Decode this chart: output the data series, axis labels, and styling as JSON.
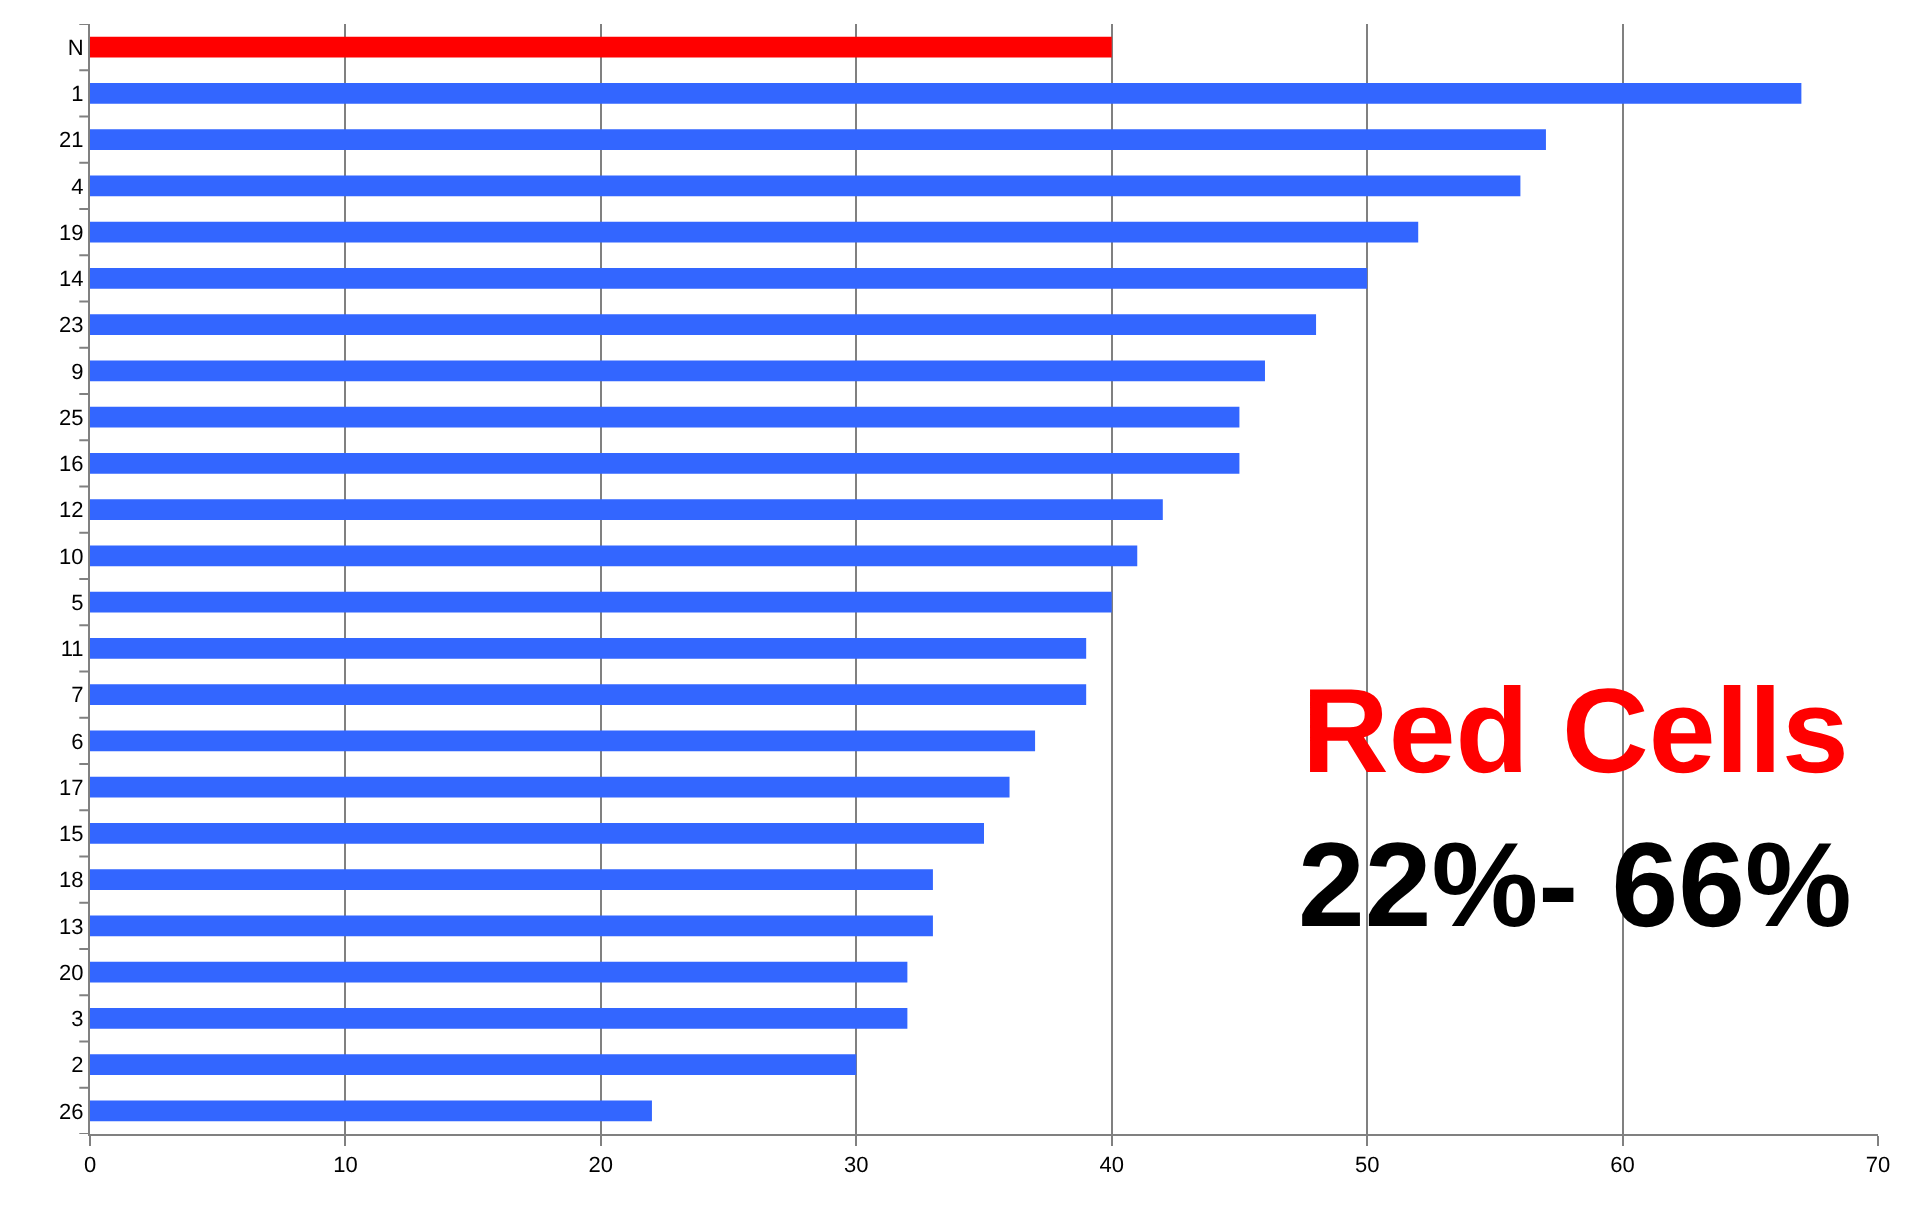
{
  "chart_data": {
    "type": "bar",
    "orientation": "horizontal",
    "categories": [
      "N",
      "1",
      "21",
      "4",
      "19",
      "14",
      "23",
      "9",
      "25",
      "16",
      "12",
      "10",
      "5",
      "11",
      "7",
      "6",
      "17",
      "15",
      "18",
      "13",
      "20",
      "3",
      "2",
      "26"
    ],
    "values": [
      40,
      67,
      57,
      56,
      52,
      50,
      48,
      46,
      45,
      45,
      42,
      41,
      40,
      39,
      39,
      37,
      36,
      35,
      33,
      33,
      32,
      32,
      30,
      22
    ],
    "colors": [
      "#ff0000",
      "#3366ff",
      "#3366ff",
      "#3366ff",
      "#3366ff",
      "#3366ff",
      "#3366ff",
      "#3366ff",
      "#3366ff",
      "#3366ff",
      "#3366ff",
      "#3366ff",
      "#3366ff",
      "#3366ff",
      "#3366ff",
      "#3366ff",
      "#3366ff",
      "#3366ff",
      "#3366ff",
      "#3366ff",
      "#3366ff",
      "#3366ff",
      "#3366ff",
      "#3366ff"
    ],
    "xlim": [
      0,
      70
    ],
    "xticks": [
      0,
      10,
      20,
      30,
      40,
      50,
      60,
      70
    ],
    "grid": "x",
    "annotations": [
      "Red Cells",
      "22%- 66%"
    ]
  }
}
